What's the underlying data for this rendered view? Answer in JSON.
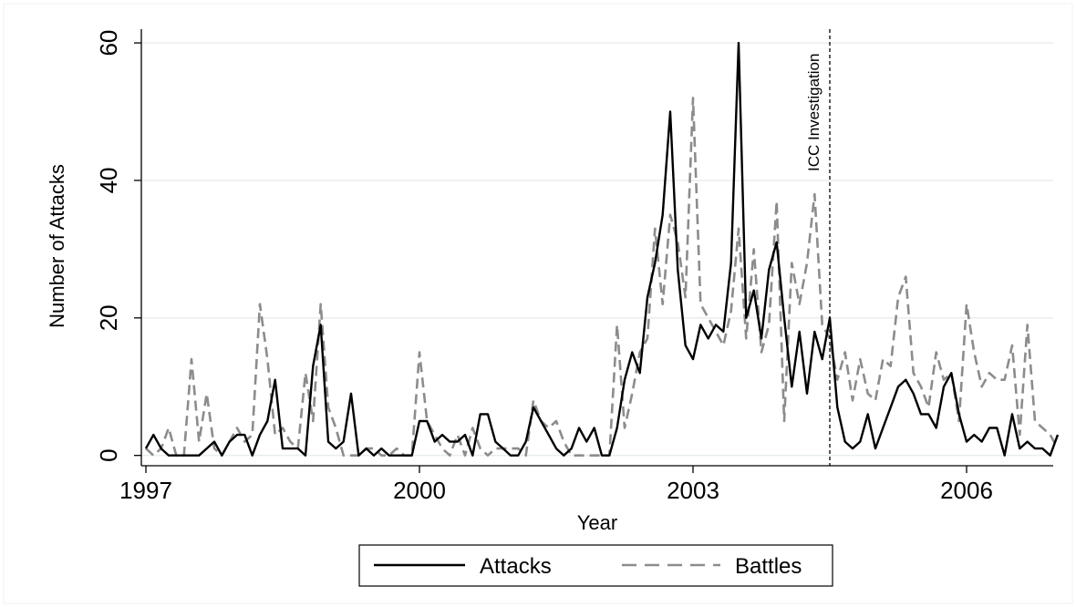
{
  "chart_data": {
    "type": "line",
    "title": "",
    "xlabel": "Year",
    "ylabel": "Number of Attacks",
    "xlim": [
      1996.95,
      2006.95
    ],
    "ylim": [
      -1.5,
      62
    ],
    "xticks": [
      1997,
      2000,
      2003,
      2006
    ],
    "yticks": [
      0,
      20,
      40,
      60
    ],
    "grid": true,
    "legend_position": "bottom",
    "colors": {
      "Attacks": "#000000",
      "Battles": "#8c8c8c",
      "grid": "#e8eef1",
      "frame": "#f0f0f0"
    },
    "annotation": {
      "label": "ICC Investigation",
      "x": 2004.5
    },
    "series": [
      {
        "name": "Attacks",
        "style": "solid",
        "values": [
          [
            1997.0,
            1
          ],
          [
            1997.083,
            3
          ],
          [
            1997.167,
            1
          ],
          [
            1997.25,
            0
          ],
          [
            1997.333,
            0
          ],
          [
            1997.417,
            0
          ],
          [
            1997.5,
            0
          ],
          [
            1997.583,
            0
          ],
          [
            1997.667,
            1
          ],
          [
            1997.75,
            2
          ],
          [
            1997.833,
            0
          ],
          [
            1997.917,
            2
          ],
          [
            1998.0,
            3
          ],
          [
            1998.083,
            3
          ],
          [
            1998.167,
            0
          ],
          [
            1998.25,
            3
          ],
          [
            1998.333,
            5
          ],
          [
            1998.417,
            11
          ],
          [
            1998.5,
            1
          ],
          [
            1998.583,
            1
          ],
          [
            1998.667,
            1
          ],
          [
            1998.75,
            0
          ],
          [
            1998.833,
            13
          ],
          [
            1998.917,
            19
          ],
          [
            1999.0,
            2
          ],
          [
            1999.083,
            1
          ],
          [
            1999.167,
            2
          ],
          [
            1999.25,
            9
          ],
          [
            1999.333,
            0
          ],
          [
            1999.417,
            1
          ],
          [
            1999.5,
            0
          ],
          [
            1999.583,
            1
          ],
          [
            1999.667,
            0
          ],
          [
            1999.75,
            0
          ],
          [
            1999.833,
            0
          ],
          [
            1999.917,
            0
          ],
          [
            2000.0,
            5
          ],
          [
            2000.083,
            5
          ],
          [
            2000.167,
            2
          ],
          [
            2000.25,
            3
          ],
          [
            2000.333,
            2
          ],
          [
            2000.417,
            2
          ],
          [
            2000.5,
            3
          ],
          [
            2000.583,
            0
          ],
          [
            2000.667,
            6
          ],
          [
            2000.75,
            6
          ],
          [
            2000.833,
            2
          ],
          [
            2000.917,
            1
          ],
          [
            2001.0,
            0
          ],
          [
            2001.083,
            0
          ],
          [
            2001.167,
            2
          ],
          [
            2001.25,
            7
          ],
          [
            2001.333,
            5
          ],
          [
            2001.417,
            3
          ],
          [
            2001.5,
            1
          ],
          [
            2001.583,
            0
          ],
          [
            2001.667,
            1
          ],
          [
            2001.75,
            4
          ],
          [
            2001.833,
            2
          ],
          [
            2001.917,
            4
          ],
          [
            2002.0,
            0
          ],
          [
            2002.083,
            0
          ],
          [
            2002.167,
            4
          ],
          [
            2002.25,
            11
          ],
          [
            2002.333,
            15
          ],
          [
            2002.417,
            12
          ],
          [
            2002.5,
            23
          ],
          [
            2002.583,
            28
          ],
          [
            2002.667,
            35
          ],
          [
            2002.75,
            50
          ],
          [
            2002.833,
            27
          ],
          [
            2002.917,
            16
          ],
          [
            2003.0,
            14
          ],
          [
            2003.083,
            19
          ],
          [
            2003.167,
            17
          ],
          [
            2003.25,
            19
          ],
          [
            2003.333,
            18
          ],
          [
            2003.417,
            28
          ],
          [
            2003.5,
            60
          ],
          [
            2003.583,
            20
          ],
          [
            2003.667,
            24
          ],
          [
            2003.75,
            17
          ],
          [
            2003.833,
            27
          ],
          [
            2003.917,
            31
          ],
          [
            2004.0,
            20
          ],
          [
            2004.083,
            10
          ],
          [
            2004.167,
            18
          ],
          [
            2004.25,
            9
          ],
          [
            2004.333,
            18
          ],
          [
            2004.417,
            14
          ],
          [
            2004.5,
            20
          ],
          [
            2004.583,
            7
          ],
          [
            2004.667,
            2
          ],
          [
            2004.75,
            1
          ],
          [
            2004.833,
            2
          ],
          [
            2004.917,
            6
          ],
          [
            2005.0,
            1
          ],
          [
            2005.083,
            4
          ],
          [
            2005.167,
            7
          ],
          [
            2005.25,
            10
          ],
          [
            2005.333,
            11
          ],
          [
            2005.417,
            9
          ],
          [
            2005.5,
            6
          ],
          [
            2005.583,
            6
          ],
          [
            2005.667,
            4
          ],
          [
            2005.75,
            10
          ],
          [
            2005.833,
            12
          ],
          [
            2005.917,
            6
          ],
          [
            2006.0,
            2
          ],
          [
            2006.083,
            3
          ],
          [
            2006.167,
            2
          ],
          [
            2006.25,
            4
          ],
          [
            2006.333,
            4
          ],
          [
            2006.417,
            0
          ],
          [
            2006.5,
            6
          ],
          [
            2006.583,
            1
          ],
          [
            2006.667,
            2
          ],
          [
            2006.75,
            1
          ],
          [
            2006.833,
            1
          ],
          [
            2006.917,
            0
          ],
          [
            2007.0,
            3
          ]
        ]
      },
      {
        "name": "Battles",
        "style": "dashed",
        "values": [
          [
            1997.0,
            1
          ],
          [
            1997.083,
            0
          ],
          [
            1997.167,
            1
          ],
          [
            1997.25,
            4
          ],
          [
            1997.333,
            0
          ],
          [
            1997.417,
            0
          ],
          [
            1997.5,
            14
          ],
          [
            1997.583,
            2
          ],
          [
            1997.667,
            9
          ],
          [
            1997.75,
            1
          ],
          [
            1997.833,
            0
          ],
          [
            1997.917,
            2
          ],
          [
            1998.0,
            4
          ],
          [
            1998.083,
            2
          ],
          [
            1998.167,
            3
          ],
          [
            1998.25,
            22
          ],
          [
            1998.333,
            14
          ],
          [
            1998.417,
            3
          ],
          [
            1998.5,
            4
          ],
          [
            1998.583,
            2
          ],
          [
            1998.667,
            1
          ],
          [
            1998.75,
            12
          ],
          [
            1998.833,
            5
          ],
          [
            1998.917,
            22
          ],
          [
            1999.0,
            7
          ],
          [
            1999.083,
            4
          ],
          [
            1999.167,
            0
          ],
          [
            1999.25,
            0
          ],
          [
            1999.333,
            0
          ],
          [
            1999.417,
            1
          ],
          [
            1999.5,
            1
          ],
          [
            1999.583,
            0
          ],
          [
            1999.667,
            0
          ],
          [
            1999.75,
            1
          ],
          [
            1999.833,
            0
          ],
          [
            1999.917,
            0
          ],
          [
            2000.0,
            15
          ],
          [
            2000.083,
            5
          ],
          [
            2000.167,
            3
          ],
          [
            2000.25,
            1
          ],
          [
            2000.333,
            0
          ],
          [
            2000.417,
            3
          ],
          [
            2000.5,
            0
          ],
          [
            2000.583,
            4
          ],
          [
            2000.667,
            1
          ],
          [
            2000.75,
            0
          ],
          [
            2000.833,
            1
          ],
          [
            2000.917,
            1
          ],
          [
            2001.0,
            1
          ],
          [
            2001.083,
            1
          ],
          [
            2001.167,
            0
          ],
          [
            2001.25,
            8
          ],
          [
            2001.333,
            5
          ],
          [
            2001.417,
            4
          ],
          [
            2001.5,
            5
          ],
          [
            2001.583,
            2
          ],
          [
            2001.667,
            0
          ],
          [
            2001.75,
            0
          ],
          [
            2001.833,
            0
          ],
          [
            2001.917,
            0
          ],
          [
            2002.0,
            0
          ],
          [
            2002.083,
            0
          ],
          [
            2002.167,
            19
          ],
          [
            2002.25,
            4
          ],
          [
            2002.333,
            9
          ],
          [
            2002.417,
            15
          ],
          [
            2002.5,
            17
          ],
          [
            2002.583,
            33
          ],
          [
            2002.667,
            22
          ],
          [
            2002.75,
            35
          ],
          [
            2002.833,
            31
          ],
          [
            2002.917,
            23
          ],
          [
            2003.0,
            52
          ],
          [
            2003.083,
            22
          ],
          [
            2003.167,
            20
          ],
          [
            2003.25,
            18
          ],
          [
            2003.333,
            16
          ],
          [
            2003.417,
            21
          ],
          [
            2003.5,
            33
          ],
          [
            2003.583,
            17
          ],
          [
            2003.667,
            30
          ],
          [
            2003.75,
            15
          ],
          [
            2003.833,
            19
          ],
          [
            2003.917,
            37
          ],
          [
            2004.0,
            5
          ],
          [
            2004.083,
            28
          ],
          [
            2004.167,
            22
          ],
          [
            2004.25,
            28
          ],
          [
            2004.333,
            38
          ],
          [
            2004.417,
            19
          ],
          [
            2004.5,
            17
          ],
          [
            2004.583,
            11
          ],
          [
            2004.667,
            15
          ],
          [
            2004.75,
            8
          ],
          [
            2004.833,
            14
          ],
          [
            2004.917,
            9
          ],
          [
            2005.0,
            8
          ],
          [
            2005.083,
            14
          ],
          [
            2005.167,
            13
          ],
          [
            2005.25,
            23
          ],
          [
            2005.333,
            26
          ],
          [
            2005.417,
            12
          ],
          [
            2005.5,
            10
          ],
          [
            2005.583,
            7
          ],
          [
            2005.667,
            15
          ],
          [
            2005.75,
            11
          ],
          [
            2005.833,
            12
          ],
          [
            2005.917,
            5
          ],
          [
            2006.0,
            22
          ],
          [
            2006.083,
            15
          ],
          [
            2006.167,
            10
          ],
          [
            2006.25,
            12
          ],
          [
            2006.333,
            11
          ],
          [
            2006.417,
            11
          ],
          [
            2006.5,
            16
          ],
          [
            2006.583,
            3
          ],
          [
            2006.667,
            19
          ],
          [
            2006.75,
            5
          ],
          [
            2006.833,
            4
          ],
          [
            2006.917,
            3
          ],
          [
            2007.0,
            1
          ]
        ]
      }
    ]
  }
}
